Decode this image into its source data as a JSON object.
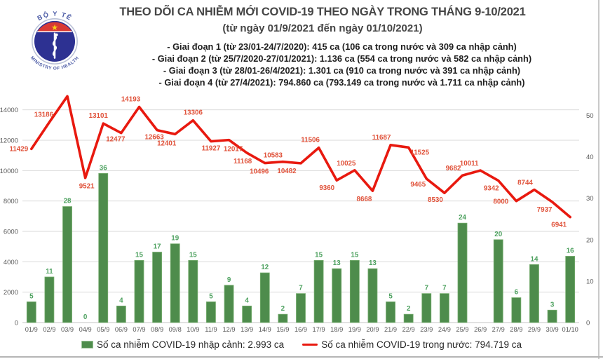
{
  "header": {
    "title": "THEO DÕI CA NHIỄM MỚI COVID-19 THEO NGÀY TRONG THÁNG 9-10/2021",
    "subtitle": "(từ ngày 01/9/2021 đến ngày 01/10/2021)",
    "phases": [
      "- Giai đoạn 1 (từ 23/01-24/7/2020): 415 ca (106 ca trong nước và 309 ca nhập cảnh)",
      "- Giai đoạn 2 (từ 25/7/2020-27/01/2021): 1.136 ca (554 ca trong nước và 582 ca nhập cảnh)",
      "- Giai đoạn 3 (từ 28/01-26/4/2021): 1.301 ca (910 ca trong nước và 391 ca nhập cảnh)",
      "- Giai đoạn 4 (từ 27/4/2021): 794.860 ca (793.149 ca trong nước và 1.711 ca nhập cảnh)"
    ]
  },
  "logo": {
    "top_text": "BỘ Y TẾ",
    "bottom_text": "MINISTRY OF HEALTH"
  },
  "legend": {
    "bar_label": "Số ca nhiễm COVID-19 nhập cảnh: 2.993 ca",
    "line_label": "Số ca nhiễm COVID-19 trong nước: 794.719 ca"
  },
  "colors": {
    "line_red": "#e8190f",
    "line_label_red": "#e0523a",
    "bar_green": "#4e8c4c",
    "bar_border_green": "#76ad6e",
    "bar_label_green": "#4da15f",
    "axis_text_gray": "#595959",
    "grid_gray": "#d9d9d9",
    "baseline_gray": "#c6c6c6"
  },
  "chart_data": {
    "type": "bar+line",
    "title": "THEO DÕI CA NHIỄM MỚI COVID-19 THEO NGÀY TRONG THÁNG 9-10/2021",
    "categories": [
      "01/9",
      "02/9",
      "03/9",
      "04/9",
      "05/9",
      "06/9",
      "07/9",
      "08/9",
      "09/8",
      "10/9",
      "11/9",
      "12/9",
      "13/9",
      "14/9",
      "15/9",
      "16/9",
      "17/9",
      "18/9",
      "19/9",
      "20/9",
      "21/9",
      "22/9",
      "23/9",
      "24/9",
      "25/9",
      "26/9",
      "27/9",
      "28/9",
      "29/9",
      "30/9",
      "01/10"
    ],
    "series": [
      {
        "name": "Số ca nhiễm COVID-19 nhập cảnh",
        "type": "bar",
        "axis": "right",
        "values": [
          5,
          11,
          28,
          0,
          36,
          4,
          15,
          17,
          19,
          15,
          5,
          9,
          4,
          12,
          2,
          7,
          15,
          13,
          15,
          13,
          5,
          2,
          7,
          7,
          24,
          0,
          20,
          6,
          14,
          3,
          16
        ],
        "labels": [
          "5",
          "11",
          "28",
          "0",
          "36",
          "4",
          "15",
          "17",
          "19",
          "15",
          "5",
          "9",
          "4",
          "12",
          "2",
          "7",
          "15",
          "13",
          "15",
          "13",
          "5",
          "2",
          "7",
          "7",
          "24",
          "",
          "20",
          "6",
          "14",
          "3",
          "16"
        ]
      },
      {
        "name": "Số ca nhiễm COVID-19 trong nước",
        "type": "line",
        "axis": "left",
        "values": [
          11429,
          13186,
          14894,
          9521,
          13101,
          12477,
          14193,
          12663,
          12401,
          13306,
          11927,
          12017,
          11168,
          10496,
          10583,
          10482,
          11506,
          9360,
          10025,
          8668,
          11687,
          11525,
          9465,
          8530,
          9682,
          10011,
          9342,
          8000,
          8744,
          7937,
          6941
        ],
        "labels": [
          "11429",
          "13186",
          "14894",
          "9521",
          "13101",
          "12477",
          "14193",
          "12663",
          "12401",
          "13306",
          "11927",
          "12017",
          "11168",
          "10496",
          "10583",
          "10482",
          "11506",
          "9360",
          "10025",
          "8668",
          "11687",
          "11525",
          "9465",
          "8530",
          "9682",
          "10011",
          "9342",
          "8000",
          "8744",
          "7937",
          "6941"
        ]
      }
    ],
    "left_axis": {
      "ticks": [
        0,
        2000,
        4000,
        6000,
        8000,
        10000,
        12000,
        14000
      ],
      "max": 15000
    },
    "right_axis": {
      "ticks": [
        0,
        10,
        20,
        30,
        40,
        50
      ],
      "max": 55
    },
    "grid": true,
    "legend_position": "bottom"
  }
}
